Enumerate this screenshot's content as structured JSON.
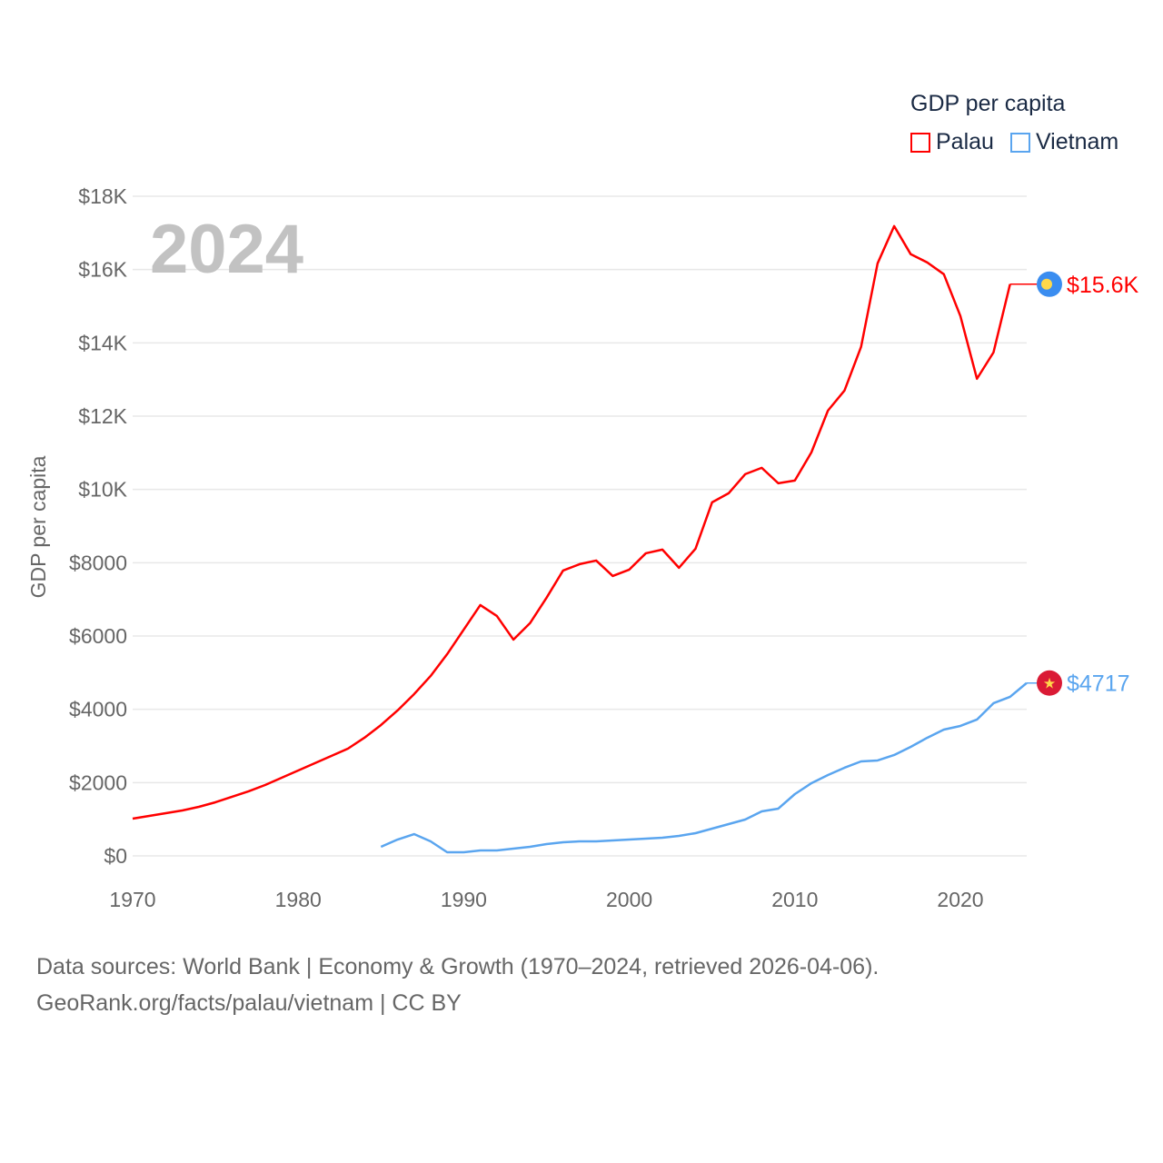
{
  "chart_data": {
    "type": "line",
    "title": "GDP per capita",
    "year_label": "2024",
    "xlabel": "",
    "ylabel": "GDP per capita",
    "xlim": [
      1970,
      2024
    ],
    "ylim": [
      0,
      18000
    ],
    "x_ticks": [
      1970,
      1980,
      1990,
      2000,
      2010,
      2020
    ],
    "x_tick_labels": [
      "1970",
      "1980",
      "1990",
      "2000",
      "2010",
      "2020"
    ],
    "y_ticks": [
      0,
      2000,
      4000,
      6000,
      8000,
      10000,
      12000,
      14000,
      16000,
      18000
    ],
    "y_tick_labels": [
      "$0",
      "$2000",
      "$4000",
      "$6000",
      "$8000",
      "$10K",
      "$12K",
      "$14K",
      "$16K",
      "$18K"
    ],
    "grid": true,
    "legend_position": "top-right",
    "series": [
      {
        "name": "Palau",
        "color": "#ff0000",
        "end_label": "$15.6K",
        "flag": "palau-flag",
        "start_year": 1970,
        "values": [
          1017,
          1091,
          1166,
          1240,
          1339,
          1463,
          1612,
          1761,
          1934,
          2133,
          2331,
          2530,
          2728,
          2926,
          3224,
          3571,
          3968,
          4414,
          4910,
          5506,
          6175,
          6845,
          6547,
          5902,
          6349,
          7043,
          7787,
          7961,
          8060,
          7638,
          7812,
          8258,
          8358,
          7862,
          8382,
          9647,
          9895,
          10416,
          10590,
          10168,
          10242,
          11011,
          12152,
          12698,
          13888,
          16170,
          17186,
          16418,
          16194,
          15872,
          14731,
          13020,
          13739,
          15600
        ]
      },
      {
        "name": "Vietnam",
        "color": "#5aa5ef",
        "end_label": "$4717",
        "flag": "vietnam-flag",
        "start_year": 1985,
        "values": [
          248,
          446,
          595,
          397,
          99,
          99,
          149,
          149,
          198,
          248,
          322,
          372,
          397,
          397,
          422,
          446,
          471,
          496,
          546,
          620,
          744,
          868,
          992,
          1215,
          1290,
          1686,
          1984,
          2207,
          2406,
          2579,
          2604,
          2753,
          2976,
          3224,
          3447,
          3546,
          3720,
          4166,
          4340,
          4717
        ]
      }
    ]
  },
  "footer": {
    "line1": "Data sources: World Bank | Economy & Growth (1970–2024, retrieved 2026-04-06).",
    "line2": "GeoRank.org/facts/palau/vietnam | CC BY"
  }
}
